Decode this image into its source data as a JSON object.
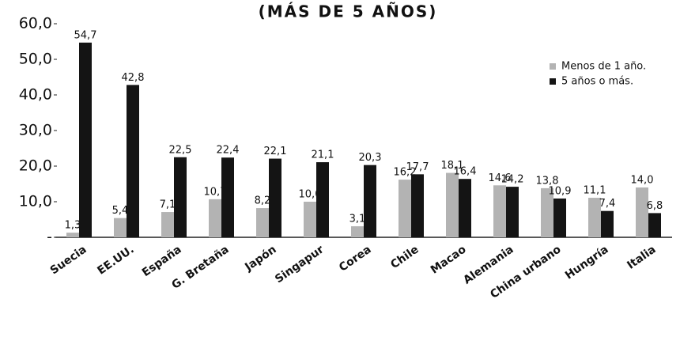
{
  "chart_data": {
    "type": "bar",
    "title": "(MÁS DE 5 AÑOS)",
    "categories": [
      "Suecia",
      "EE.UU.",
      "España",
      "G. Bretaña",
      "Japón",
      "Singapur",
      "Corea",
      "Chile",
      "Macao",
      "Alemania",
      "China urbano",
      "Hungría",
      "Italia"
    ],
    "series": [
      {
        "name": "Menos de 1 año.",
        "color": "#b3b3b3",
        "values": [
          1.3,
          5.4,
          7.1,
          10.7,
          8.2,
          10.0,
          3.1,
          16.2,
          18.1,
          14.6,
          13.8,
          11.1,
          14.0
        ],
        "value_labels": [
          "1,3",
          "5,4",
          "7,1",
          "10,7",
          "8,2",
          "10,0",
          "3,1",
          "16,2",
          "18,1",
          "14,6",
          "13,8",
          "11,1",
          "14,0"
        ]
      },
      {
        "name": "5 años o más.",
        "color": "#141414",
        "values": [
          54.7,
          42.8,
          22.5,
          22.4,
          22.1,
          21.1,
          20.3,
          17.7,
          16.4,
          14.2,
          10.9,
          7.4,
          6.8
        ],
        "value_labels": [
          "54,7",
          "42,8",
          "22,5",
          "22,4",
          "22,1",
          "21,1",
          "20,3",
          "17,7",
          "16,4",
          "14,2",
          "10,9",
          "7,4",
          "6,8"
        ]
      }
    ],
    "ylim": [
      0,
      60
    ],
    "yticks": [
      {
        "value": 0,
        "label": "-"
      },
      {
        "value": 10,
        "label": "10,0"
      },
      {
        "value": 20,
        "label": "20,0"
      },
      {
        "value": 30,
        "label": "30,0"
      },
      {
        "value": 40,
        "label": "40,0"
      },
      {
        "value": 50,
        "label": "50,0"
      },
      {
        "value": 60,
        "label": "60,0"
      }
    ],
    "grid": false,
    "legend": "upper right"
  }
}
